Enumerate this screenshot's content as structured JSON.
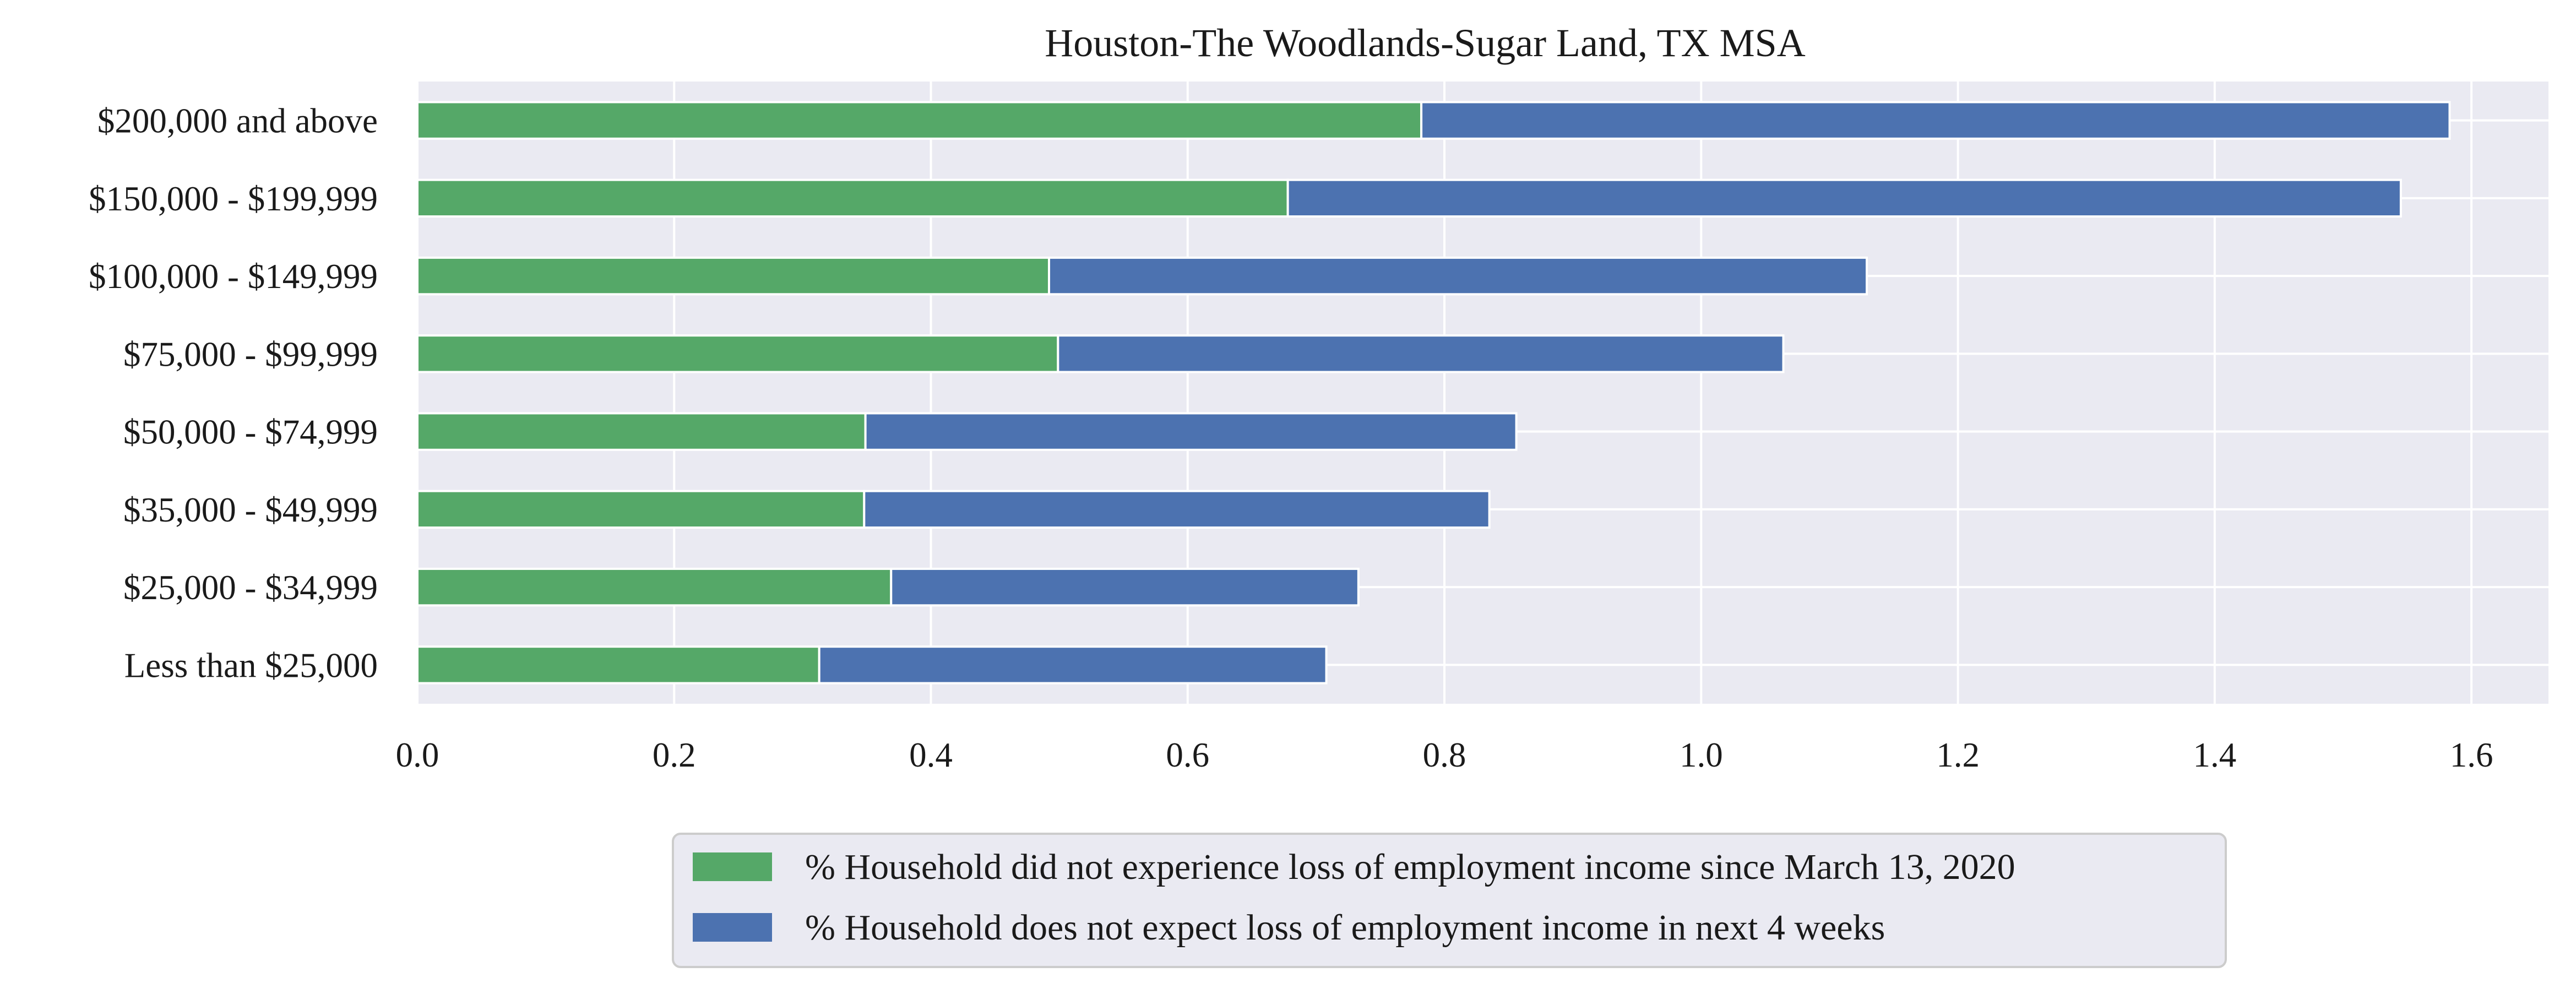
{
  "chart_data": {
    "type": "bar",
    "orientation": "horizontal",
    "stacked": true,
    "title": "Houston-The Woodlands-Sugar Land, TX MSA",
    "xlabel": "",
    "ylabel": "",
    "categories": [
      "Less than $25,000",
      "$25,000 - $34,999",
      "$35,000 - $49,999",
      "$50,000 - $74,999",
      "$75,000 - $99,999",
      "$100,000 - $149,999",
      "$150,000 - $199,999",
      "$200,000 and above"
    ],
    "series": [
      {
        "name": "% Household did not experience loss of employment income since March 13, 2020",
        "color": "#55a868",
        "values": [
          0.313,
          0.369,
          0.348,
          0.349,
          0.499,
          0.492,
          0.678,
          0.782
        ]
      },
      {
        "name": "% Household does not expect loss of employment income in next 4 weeks",
        "color": "#4c72b0",
        "values": [
          0.395,
          0.364,
          0.487,
          0.507,
          0.565,
          0.637,
          0.867,
          0.801
        ]
      }
    ],
    "xlim": [
      0,
      1.66
    ],
    "xticks": [
      "0.0",
      "0.2",
      "0.4",
      "0.6",
      "0.8",
      "1.0",
      "1.2",
      "1.4",
      "1.6"
    ],
    "grid": true,
    "legend_position": "bottom-center",
    "plot_background": "#eaeaf2",
    "grid_color": "#ffffff"
  }
}
